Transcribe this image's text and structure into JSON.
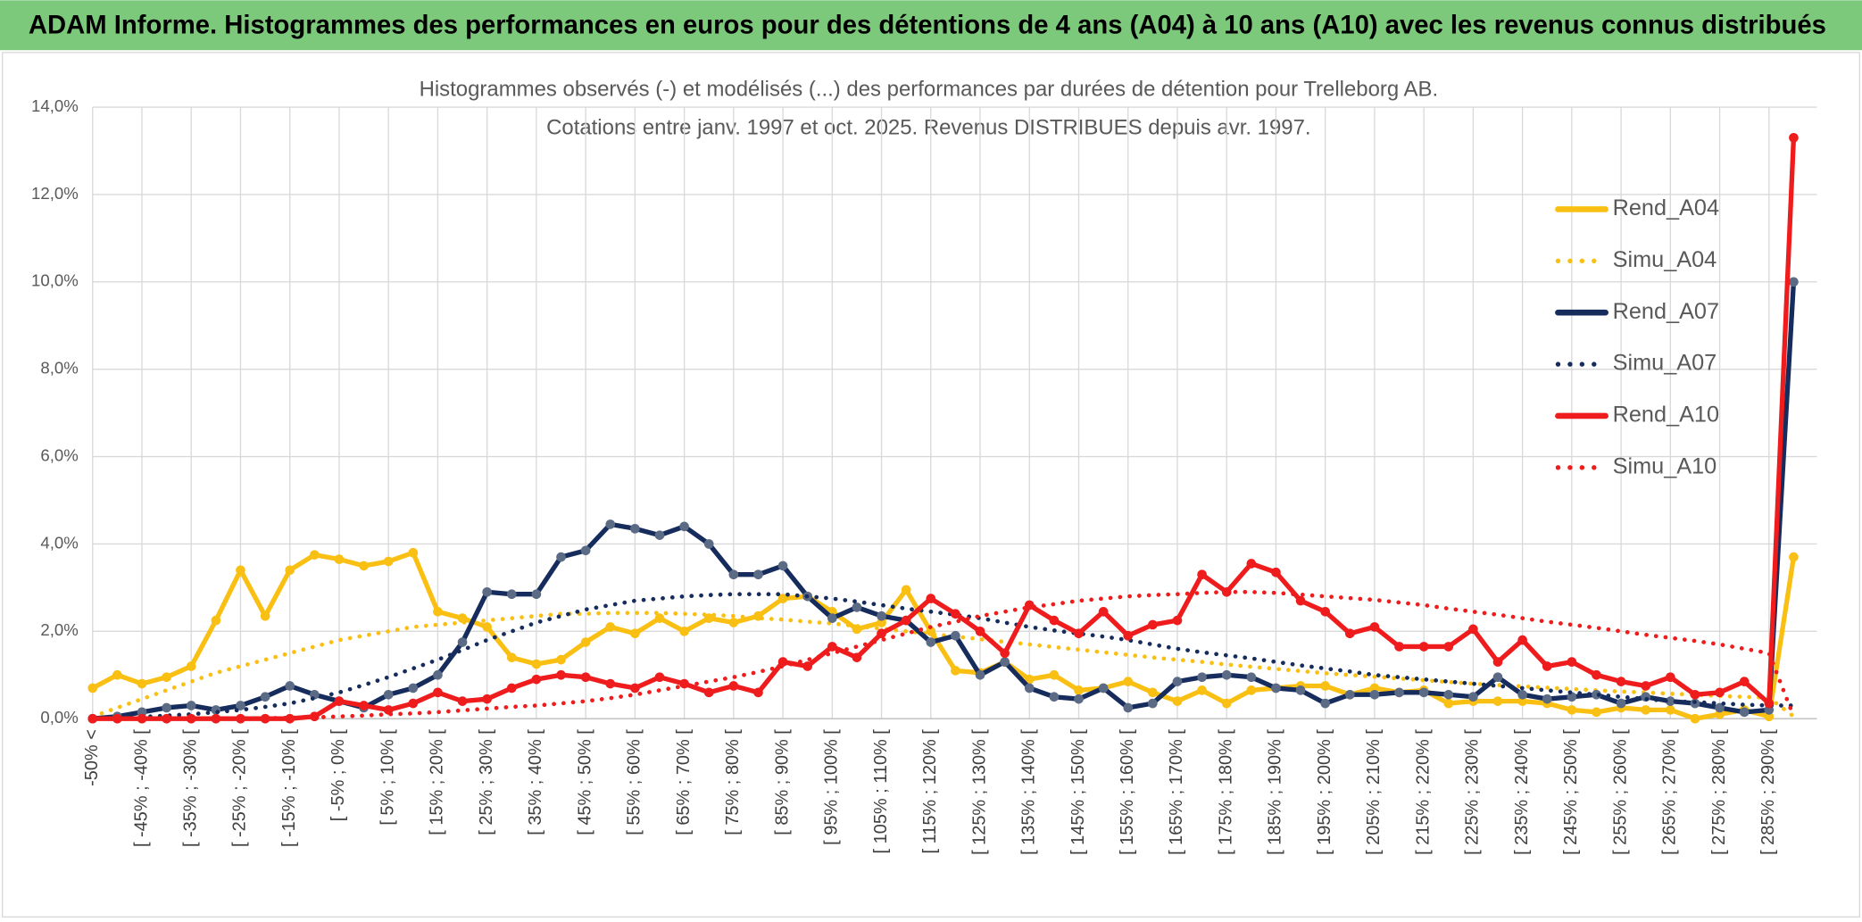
{
  "header": {
    "title": "ADAM Informe. Histogrammes des performances en euros pour des détentions de 4 ans (A04) à 10 ans (A10) avec les revenus connus distribués"
  },
  "chart_data": {
    "type": "line",
    "title": "Histogrammes observés (-) et modélisés (...) des performances par durées de détention pour Trelleborg AB.",
    "subtitle": "Cotations entre janv. 1997 et oct. 2025. Revenus DISTRIBUES depuis avr. 1997.",
    "categories": [
      "-50% <",
      null,
      "[ -45% ; -40% [",
      null,
      "[ -35% ; -30% [",
      null,
      "[ -25% ; -20% [",
      null,
      "[ -15% ; -10% [",
      null,
      "[ -5% ; 0% [",
      null,
      "[ 5% ; 10% [",
      null,
      "[ 15% ; 20% [",
      null,
      "[ 25% ; 30% [",
      null,
      "[ 35% ; 40% [",
      null,
      "[ 45% ; 50% [",
      null,
      "[ 55% ; 60% [",
      null,
      "[ 65% ; 70% [",
      null,
      "[ 75% ; 80% [",
      null,
      "[ 85% ; 90% [",
      null,
      "[ 95% ; 100% [",
      null,
      "[ 105% ; 110% [",
      null,
      "[ 115% ; 120% [",
      null,
      "[ 125% ; 130% [",
      null,
      "[ 135% ; 140% [",
      null,
      "[ 145% ; 150% [",
      null,
      "[ 155% ; 160% [",
      null,
      "[ 165% ; 170% [",
      null,
      "[ 175% ; 180% [",
      null,
      "[ 185% ; 190% [",
      null,
      "[ 195% ; 200% [",
      null,
      "[ 205% ; 210% [",
      null,
      "[ 215% ; 220% [",
      null,
      "[ 225% ; 230% [",
      null,
      "[ 235% ; 240% [",
      null,
      "[ 245% ; 250% [",
      null,
      "[ 255% ; 260% [",
      null,
      "[ 265% ; 270% [",
      null,
      "[ 275% ; 280% [",
      null,
      "[ 285% ; 290% [",
      null
    ],
    "series": [
      {
        "name": "Rend_A04",
        "color": "#f9c013",
        "style": "solid",
        "values": [
          0.7,
          1.0,
          0.8,
          0.95,
          1.2,
          2.25,
          3.4,
          2.35,
          3.4,
          3.75,
          3.65,
          3.5,
          3.6,
          3.8,
          2.45,
          2.3,
          2.1,
          1.4,
          1.25,
          1.35,
          1.75,
          2.1,
          1.95,
          2.3,
          2.0,
          2.3,
          2.2,
          2.35,
          2.75,
          2.8,
          2.45,
          2.05,
          2.2,
          2.95,
          2.0,
          1.1,
          1.05,
          1.3,
          0.9,
          1.0,
          0.65,
          0.7,
          0.85,
          0.6,
          0.4,
          0.65,
          0.35,
          0.65,
          0.7,
          0.75,
          0.75,
          0.55,
          0.7,
          0.6,
          0.65,
          0.35,
          0.4,
          0.4,
          0.4,
          0.35,
          0.2,
          0.15,
          0.25,
          0.2,
          0.2,
          0.0,
          0.1,
          0.2,
          0.05,
          3.7
        ]
      },
      {
        "name": "Simu_A04",
        "color": "#f9c013",
        "style": "dotted",
        "values": [
          0.05,
          0.25,
          0.45,
          0.65,
          0.85,
          1.05,
          1.2,
          1.35,
          1.5,
          1.65,
          1.8,
          1.9,
          2.0,
          2.1,
          2.15,
          2.2,
          2.25,
          2.3,
          2.35,
          2.4,
          2.4,
          2.42,
          2.42,
          2.42,
          2.4,
          2.38,
          2.35,
          2.3,
          2.27,
          2.22,
          2.18,
          2.12,
          2.06,
          2.0,
          1.94,
          1.88,
          1.82,
          1.76,
          1.7,
          1.64,
          1.58,
          1.52,
          1.46,
          1.4,
          1.35,
          1.3,
          1.24,
          1.19,
          1.14,
          1.09,
          1.04,
          1.0,
          0.96,
          0.92,
          0.88,
          0.84,
          0.8,
          0.77,
          0.74,
          0.71,
          0.68,
          0.65,
          0.62,
          0.6,
          0.57,
          0.55,
          0.52,
          0.5,
          0.48,
          0.05
        ]
      },
      {
        "name": "Rend_A07",
        "color": "#152c5c",
        "style": "solid",
        "values": [
          0,
          0.05,
          0.15,
          0.25,
          0.3,
          0.2,
          0.3,
          0.5,
          0.75,
          0.55,
          0.4,
          0.25,
          0.55,
          0.7,
          1.0,
          1.75,
          2.9,
          2.85,
          2.85,
          3.7,
          3.85,
          4.45,
          4.35,
          4.2,
          4.4,
          4.0,
          3.3,
          3.3,
          3.5,
          2.8,
          2.3,
          2.55,
          2.35,
          2.25,
          1.75,
          1.9,
          1.0,
          1.3,
          0.7,
          0.5,
          0.45,
          0.7,
          0.25,
          0.35,
          0.85,
          0.95,
          1.0,
          0.95,
          0.7,
          0.65,
          0.35,
          0.55,
          0.55,
          0.6,
          0.6,
          0.55,
          0.5,
          0.95,
          0.55,
          0.45,
          0.5,
          0.55,
          0.35,
          0.5,
          0.4,
          0.35,
          0.25,
          0.15,
          0.2,
          10.0
        ]
      },
      {
        "name": "Simu_A07",
        "color": "#152c5c",
        "style": "dotted",
        "values": [
          0,
          0.02,
          0.04,
          0.07,
          0.1,
          0.15,
          0.2,
          0.27,
          0.35,
          0.47,
          0.6,
          0.77,
          0.95,
          1.15,
          1.35,
          1.57,
          1.8,
          2.0,
          2.2,
          2.35,
          2.5,
          2.6,
          2.7,
          2.75,
          2.8,
          2.83,
          2.85,
          2.85,
          2.85,
          2.8,
          2.75,
          2.68,
          2.6,
          2.52,
          2.45,
          2.38,
          2.3,
          2.2,
          2.1,
          2.02,
          1.95,
          1.88,
          1.8,
          1.7,
          1.6,
          1.52,
          1.45,
          1.38,
          1.3,
          1.22,
          1.15,
          1.08,
          1.0,
          0.95,
          0.9,
          0.85,
          0.8,
          0.75,
          0.7,
          0.65,
          0.6,
          0.55,
          0.5,
          0.45,
          0.4,
          0.38,
          0.35,
          0.32,
          0.3,
          0.3
        ]
      },
      {
        "name": "Rend_A10",
        "color": "#ee1c1c",
        "style": "solid",
        "values": [
          0,
          0,
          0,
          0,
          0,
          0,
          0,
          0,
          0,
          0.05,
          0.4,
          0.3,
          0.2,
          0.35,
          0.6,
          0.4,
          0.45,
          0.7,
          0.9,
          1.0,
          0.95,
          0.8,
          0.7,
          0.95,
          0.8,
          0.6,
          0.75,
          0.6,
          1.3,
          1.2,
          1.65,
          1.4,
          1.95,
          2.25,
          2.75,
          2.4,
          2.0,
          1.5,
          2.6,
          2.25,
          1.95,
          2.45,
          1.9,
          2.15,
          2.25,
          3.3,
          2.9,
          3.55,
          3.35,
          2.7,
          2.45,
          1.95,
          2.1,
          1.65,
          1.65,
          1.65,
          2.05,
          1.3,
          1.8,
          1.2,
          1.3,
          1.0,
          0.85,
          0.75,
          0.95,
          0.55,
          0.6,
          0.85,
          0.35,
          13.3
        ]
      },
      {
        "name": "Simu_A10",
        "color": "#ee1c1c",
        "style": "dotted",
        "values": [
          0,
          0,
          0,
          0,
          0,
          0,
          0.01,
          0.01,
          0.02,
          0.03,
          0.05,
          0.07,
          0.1,
          0.12,
          0.15,
          0.19,
          0.23,
          0.27,
          0.3,
          0.35,
          0.4,
          0.47,
          0.55,
          0.65,
          0.75,
          0.85,
          0.95,
          1.07,
          1.2,
          1.35,
          1.5,
          1.65,
          1.8,
          1.95,
          2.1,
          2.22,
          2.35,
          2.45,
          2.55,
          2.62,
          2.7,
          2.75,
          2.8,
          2.83,
          2.85,
          2.88,
          2.9,
          2.9,
          2.88,
          2.84,
          2.8,
          2.76,
          2.72,
          2.66,
          2.6,
          2.52,
          2.45,
          2.38,
          2.3,
          2.22,
          2.15,
          2.08,
          2.0,
          1.92,
          1.85,
          1.78,
          1.7,
          1.6,
          1.5,
          0.05
        ]
      }
    ],
    "ylim": [
      0,
      14
    ],
    "yticks": [
      {
        "value": 0,
        "label": "0,0%"
      },
      {
        "value": 2,
        "label": "2,0%"
      },
      {
        "value": 4,
        "label": "4,0%"
      },
      {
        "value": 6,
        "label": "6,0%"
      },
      {
        "value": 8,
        "label": "8,0%"
      },
      {
        "value": 10,
        "label": "10,0%"
      },
      {
        "value": 12,
        "label": "12,0%"
      },
      {
        "value": 14,
        "label": "14,0%"
      }
    ],
    "grid": true,
    "legend": "right"
  }
}
